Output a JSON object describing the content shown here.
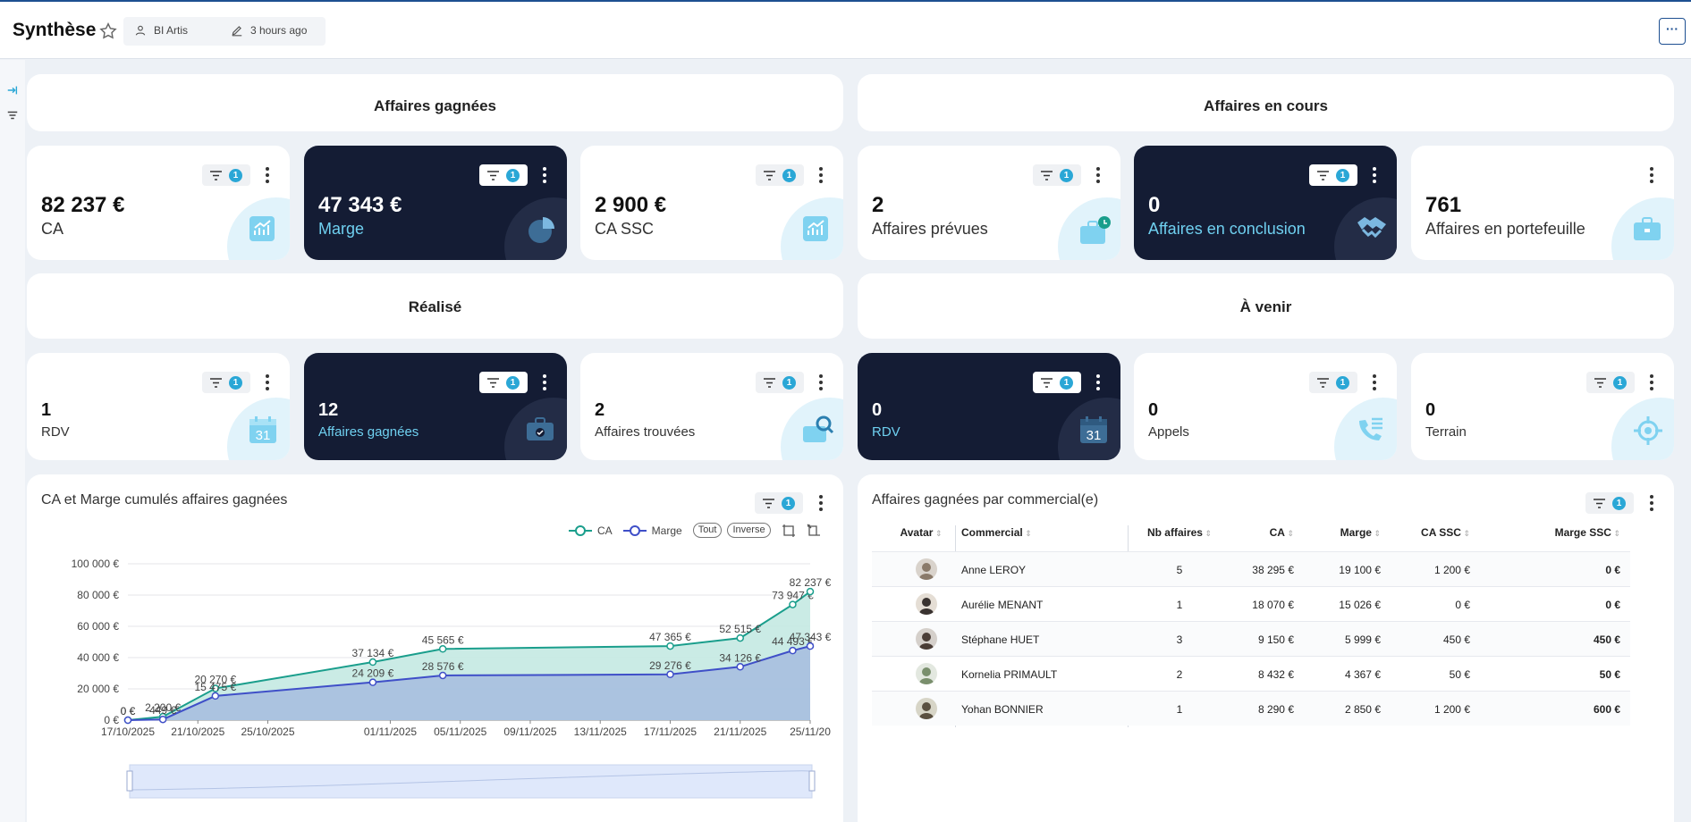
{
  "header": {
    "title": "Synthèse",
    "author": "BI Artis",
    "updated": "3 hours ago",
    "more_label": "···"
  },
  "colors": {
    "dark_card": "#141c34",
    "accent": "#2aa7d6",
    "ca_line": "#1a9e8c",
    "marge_line": "#3f4fc8"
  },
  "sections": {
    "gagnees": "Affaires gagnées",
    "en_cours": "Affaires en cours",
    "realise": "Réalisé",
    "a_venir": "À venir"
  },
  "kpis_top": [
    {
      "value": "82 237 €",
      "label": "CA",
      "filter_count": "1",
      "icon": "chart-up-icon"
    },
    {
      "value": "47 343 €",
      "label": "Marge",
      "filter_count": "1",
      "icon": "pie-icon"
    },
    {
      "value": "2 900 €",
      "label": "CA SSC",
      "filter_count": "1",
      "icon": "chart-up-icon"
    },
    {
      "value": "2",
      "label": "Affaires prévues",
      "filter_count": "1",
      "icon": "briefcase-clock-icon"
    },
    {
      "value": "0",
      "label": "Affaires en conclusion",
      "filter_count": "1",
      "icon": "handshake-icon"
    },
    {
      "value": "761",
      "label": "Affaires en portefeuille",
      "icon": "briefcase-icon"
    }
  ],
  "kpis_bottom": [
    {
      "value": "1",
      "label": "RDV",
      "filter_count": "1",
      "icon": "calendar-icon",
      "icon_text": "31"
    },
    {
      "value": "12",
      "label": "Affaires gagnées",
      "filter_count": "1",
      "icon": "briefcase-check-icon"
    },
    {
      "value": "2",
      "label": "Affaires trouvées",
      "filter_count": "1",
      "icon": "briefcase-search-icon"
    },
    {
      "value": "0",
      "label": "RDV",
      "filter_count": "1",
      "icon": "calendar-icon",
      "icon_text": "31"
    },
    {
      "value": "0",
      "label": "Appels",
      "filter_count": "1",
      "icon": "phone-list-icon"
    },
    {
      "value": "0",
      "label": "Terrain",
      "filter_count": "1",
      "icon": "target-icon"
    }
  ],
  "chart_panel": {
    "title": "CA et Marge cumulés affaires gagnées",
    "filter_count": "1",
    "legend_tout": "Tout",
    "legend_inverse": "Inverse"
  },
  "chart_data": {
    "type": "area",
    "x": [
      "17/10/2025",
      "19/10/2025",
      "22/10/2025",
      "31/10/2025",
      "04/11/2025",
      "17/11/2025",
      "21/11/2025",
      "24/11/2025",
      "25/11/2025"
    ],
    "x_ticks": [
      "17/10/2025",
      "21/10/2025",
      "25/10/2025",
      "01/11/2025",
      "05/11/2025",
      "09/11/2025",
      "13/11/2025",
      "17/11/2025",
      "21/11/2025",
      "25/11/20"
    ],
    "y_ticks": [
      "0 €",
      "20 000 €",
      "40 000 €",
      "60 000 €",
      "80 000 €",
      "100 000 €"
    ],
    "ylim": [
      0,
      100000
    ],
    "series": [
      {
        "name": "CA",
        "values": [
          0,
          2200,
          20270,
          37134,
          45565,
          47365,
          52515,
          73947,
          82237
        ],
        "labels": [
          "0 €",
          "2 200 €",
          "20 270 €",
          "37 134 €",
          "45 565 €",
          "47 365 €",
          "52 515 €",
          "73 947 €",
          "82 237 €"
        ]
      },
      {
        "name": "Marge",
        "values": [
          0,
          449,
          15475,
          24209,
          28576,
          29276,
          34126,
          44493,
          47343
        ],
        "labels": [
          "0 €",
          "449 €",
          "15 475 €",
          "24 209 €",
          "28 576 €",
          "29 276 €",
          "34 126 €",
          "44 493 €",
          "47 343 €"
        ]
      }
    ],
    "grid": true,
    "legend": "top-right"
  },
  "table_panel": {
    "title": "Affaires gagnées par commercial(e)",
    "filter_count": "1",
    "columns": [
      "Avatar",
      "Commercial",
      "Nb affaires",
      "CA",
      "Marge",
      "CA SSC",
      "Marge SSC"
    ],
    "rows": [
      {
        "name": "Anne LEROY",
        "nb": "5",
        "ca": "38 295 €",
        "marge": "19 100 €",
        "ca_ssc": "1 200 €",
        "marge_ssc": "0 €"
      },
      {
        "name": "Aurélie MENANT",
        "nb": "1",
        "ca": "18 070 €",
        "marge": "15 026 €",
        "ca_ssc": "0 €",
        "marge_ssc": "0 €"
      },
      {
        "name": "Stéphane HUET",
        "nb": "3",
        "ca": "9 150 €",
        "marge": "5 999 €",
        "ca_ssc": "450 €",
        "marge_ssc": "450 €"
      },
      {
        "name": "Kornelia PRIMAULT",
        "nb": "2",
        "ca": "8 432 €",
        "marge": "4 367 €",
        "ca_ssc": "50 €",
        "marge_ssc": "50 €"
      },
      {
        "name": "Yohan BONNIER",
        "nb": "1",
        "ca": "8 290 €",
        "marge": "2 850 €",
        "ca_ssc": "1 200 €",
        "marge_ssc": "600 €"
      }
    ]
  }
}
